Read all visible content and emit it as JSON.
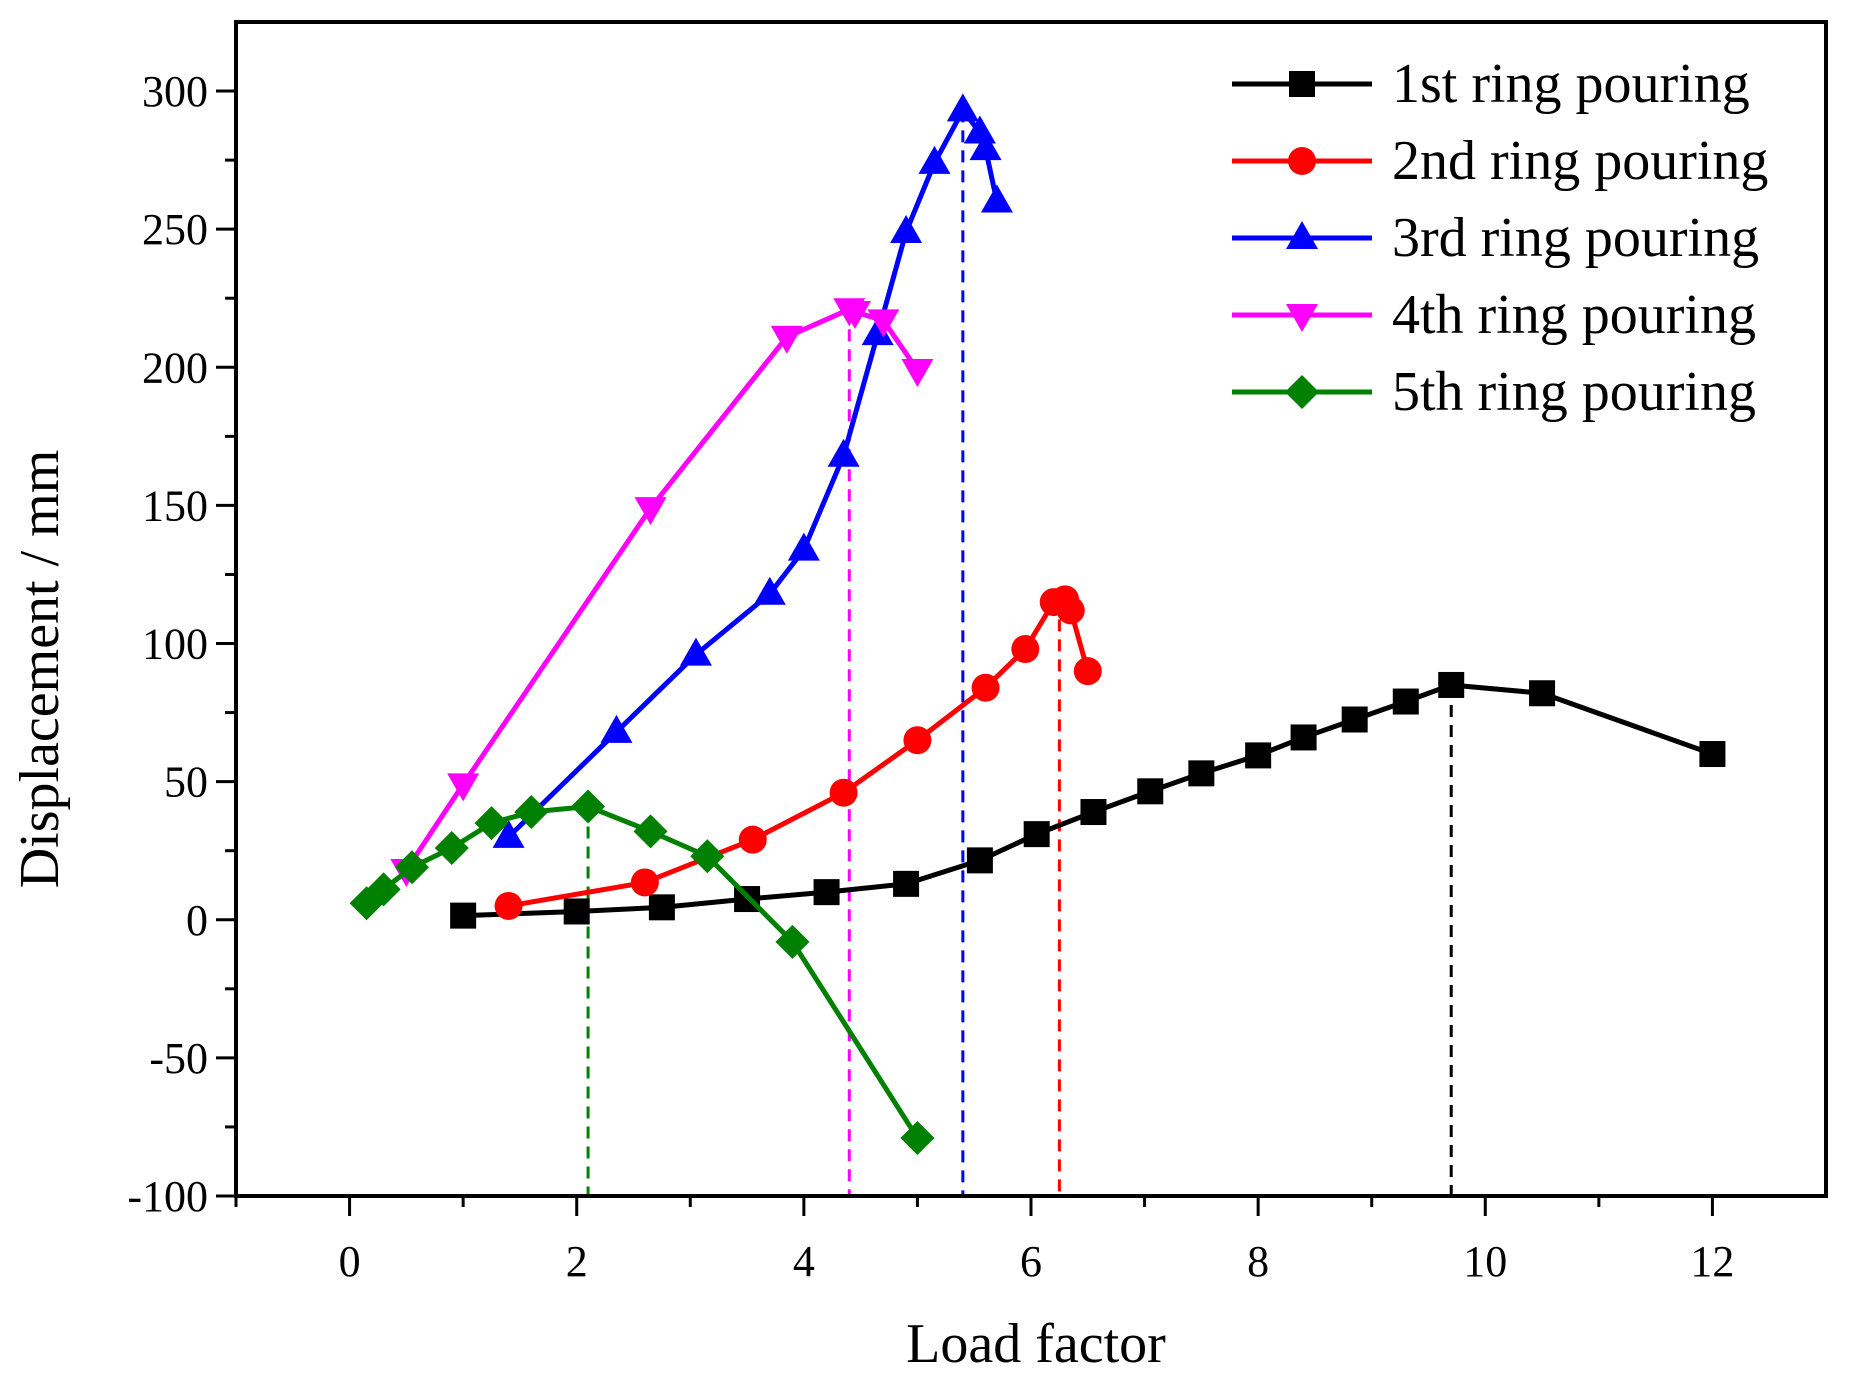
{
  "chart_data": {
    "type": "line",
    "title": "",
    "xlabel": "Load factor",
    "ylabel": "Displacement / mm",
    "xlim": [
      -1,
      13
    ],
    "ylim": [
      -100,
      325
    ],
    "xticks": [
      0,
      2,
      4,
      6,
      8,
      10,
      12
    ],
    "yticks": [
      -100,
      -50,
      0,
      50,
      100,
      150,
      200,
      250,
      300
    ],
    "legend_position": "top-right",
    "series": [
      {
        "name": "1st ring pouring",
        "color": "#000000",
        "marker": "square",
        "points": [
          [
            1.0,
            1.5
          ],
          [
            2.0,
            3
          ],
          [
            2.75,
            4.5
          ],
          [
            3.5,
            7.5
          ],
          [
            4.2,
            10
          ],
          [
            4.9,
            13
          ],
          [
            5.55,
            21.5
          ],
          [
            6.05,
            31
          ],
          [
            6.55,
            39
          ],
          [
            7.05,
            46.5
          ],
          [
            7.5,
            53
          ],
          [
            8.0,
            59.5
          ],
          [
            8.4,
            66
          ],
          [
            8.85,
            72.5
          ],
          [
            9.3,
            79
          ],
          [
            9.7,
            85
          ],
          [
            10.5,
            82
          ],
          [
            12.0,
            60
          ]
        ]
      },
      {
        "name": "2nd ring pouring",
        "color": "#ff0000",
        "marker": "circle",
        "points": [
          [
            1.4,
            5
          ],
          [
            2.6,
            13.5
          ],
          [
            3.55,
            29
          ],
          [
            4.35,
            46
          ],
          [
            5.0,
            65
          ],
          [
            5.6,
            84
          ],
          [
            5.95,
            98
          ],
          [
            6.2,
            115
          ],
          [
            6.3,
            116
          ],
          [
            6.35,
            112
          ],
          [
            6.5,
            90
          ]
        ]
      },
      {
        "name": "3rd ring pouring",
        "color": "#0000ff",
        "marker": "triangle-up",
        "points": [
          [
            1.4,
            30
          ],
          [
            2.35,
            68
          ],
          [
            3.05,
            96
          ],
          [
            3.7,
            118
          ],
          [
            4.0,
            134
          ],
          [
            4.35,
            168
          ],
          [
            4.65,
            212
          ],
          [
            4.9,
            249
          ],
          [
            5.15,
            274
          ],
          [
            5.4,
            293
          ],
          [
            5.55,
            285
          ],
          [
            5.6,
            279
          ],
          [
            5.7,
            260
          ]
        ]
      },
      {
        "name": "4th ring pouring",
        "color": "#ff00ff",
        "marker": "triangle-down",
        "points": [
          [
            0.5,
            18
          ],
          [
            1.0,
            49
          ],
          [
            2.65,
            149
          ],
          [
            3.85,
            211
          ],
          [
            4.4,
            221
          ],
          [
            4.45,
            220
          ],
          [
            4.7,
            217
          ],
          [
            5.0,
            199
          ]
        ]
      },
      {
        "name": "5th ring pouring",
        "color": "#008000",
        "marker": "diamond",
        "points": [
          [
            0.15,
            6
          ],
          [
            0.3,
            11
          ],
          [
            0.55,
            19
          ],
          [
            0.9,
            26
          ],
          [
            1.25,
            35
          ],
          [
            1.6,
            39
          ],
          [
            2.1,
            41
          ],
          [
            2.65,
            32
          ],
          [
            3.15,
            23
          ],
          [
            3.9,
            -8
          ],
          [
            5.0,
            -79
          ]
        ]
      }
    ],
    "reference_lines": [
      {
        "series": "1st ring pouring",
        "x": 9.7,
        "y_top": 85,
        "color": "#000000"
      },
      {
        "series": "2nd ring pouring",
        "x": 6.25,
        "y_top": 116,
        "color": "#ff0000"
      },
      {
        "series": "3rd ring pouring",
        "x": 5.4,
        "y_top": 293,
        "color": "#0000ff"
      },
      {
        "series": "4th ring pouring",
        "x": 4.4,
        "y_top": 221,
        "color": "#ff00ff"
      },
      {
        "series": "5th ring pouring",
        "x": 2.1,
        "y_top": 41,
        "color": "#008000"
      }
    ]
  }
}
